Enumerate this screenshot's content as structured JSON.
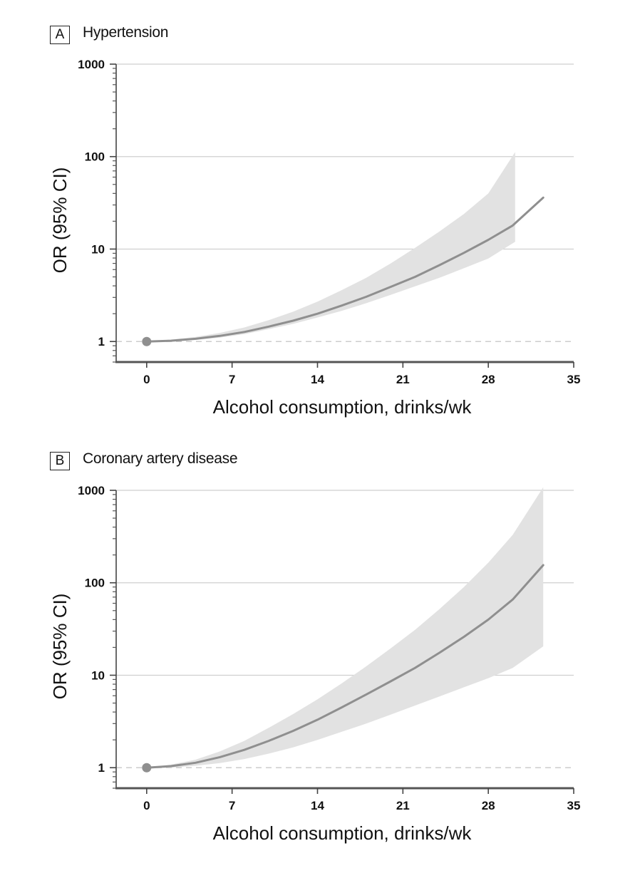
{
  "chart_data": [
    {
      "panel_label": "A",
      "title": "Hypertension",
      "type": "line",
      "xlabel": "Alcohol consumption, drinks/wk",
      "ylabel": "OR (95% CI)",
      "xlim": [
        -2.5,
        35
      ],
      "ylim": [
        0.6,
        1000
      ],
      "yscale": "log",
      "x_ticks": [
        0,
        7,
        14,
        21,
        28,
        35
      ],
      "y_ticks": [
        1,
        10,
        100,
        1000
      ],
      "reference_line": 1,
      "reference_point": {
        "x": 0,
        "y": 1
      },
      "series": [
        {
          "name": "OR",
          "x": [
            0,
            2,
            4,
            6,
            8,
            10,
            12,
            14,
            16,
            18,
            20,
            22,
            24,
            26,
            28,
            30,
            32.5
          ],
          "y": [
            1.0,
            1.02,
            1.07,
            1.15,
            1.27,
            1.45,
            1.68,
            2.0,
            2.45,
            3.05,
            3.9,
            5.0,
            6.7,
            9.1,
            12.6,
            18.0,
            36.0
          ]
        },
        {
          "name": "95% CI",
          "x": [
            0,
            2,
            4,
            6,
            8,
            10,
            12,
            14,
            16,
            18,
            20,
            22,
            24,
            26,
            28,
            30.2
          ],
          "lower": [
            1.0,
            1.0,
            1.04,
            1.1,
            1.2,
            1.36,
            1.55,
            1.82,
            2.15,
            2.6,
            3.2,
            3.95,
            4.9,
            6.2,
            7.9,
            12.0
          ],
          "upper": [
            1.0,
            1.05,
            1.12,
            1.24,
            1.42,
            1.7,
            2.1,
            2.7,
            3.6,
            4.9,
            7.0,
            10.3,
            15.5,
            24.0,
            40.0,
            112.0
          ]
        }
      ]
    },
    {
      "panel_label": "B",
      "title": "Coronary artery disease",
      "type": "line",
      "xlabel": "Alcohol consumption, drinks/wk",
      "ylabel": "OR (95% CI)",
      "xlim": [
        -2.5,
        35
      ],
      "ylim": [
        0.6,
        1000
      ],
      "yscale": "log",
      "x_ticks": [
        0,
        7,
        14,
        21,
        28,
        35
      ],
      "y_ticks": [
        1,
        10,
        100,
        1000
      ],
      "reference_line": 1,
      "reference_point": {
        "x": 0,
        "y": 1
      },
      "series": [
        {
          "name": "OR",
          "x": [
            0,
            2,
            4,
            6,
            8,
            10,
            12,
            14,
            16,
            18,
            20,
            22,
            24,
            26,
            28,
            30,
            32.5
          ],
          "y": [
            1.0,
            1.04,
            1.13,
            1.3,
            1.56,
            1.95,
            2.5,
            3.3,
            4.5,
            6.2,
            8.6,
            12.0,
            17.5,
            26.0,
            40.0,
            66.0,
            155.0
          ]
        },
        {
          "name": "95% CI",
          "x": [
            0,
            2,
            4,
            6,
            8,
            10,
            12,
            14,
            16,
            18,
            20,
            22,
            24,
            26,
            28,
            30,
            32.5
          ],
          "lower": [
            1.0,
            1.0,
            1.05,
            1.12,
            1.24,
            1.42,
            1.66,
            2.0,
            2.45,
            3.0,
            3.75,
            4.7,
            5.9,
            7.4,
            9.3,
            12.0,
            20.5
          ],
          "upper": [
            1.0,
            1.08,
            1.22,
            1.5,
            1.95,
            2.7,
            3.8,
            5.5,
            8.2,
            12.5,
            19.5,
            31.0,
            52.0,
            90.0,
            165.0,
            330.0,
            1080.0
          ]
        }
      ]
    }
  ]
}
